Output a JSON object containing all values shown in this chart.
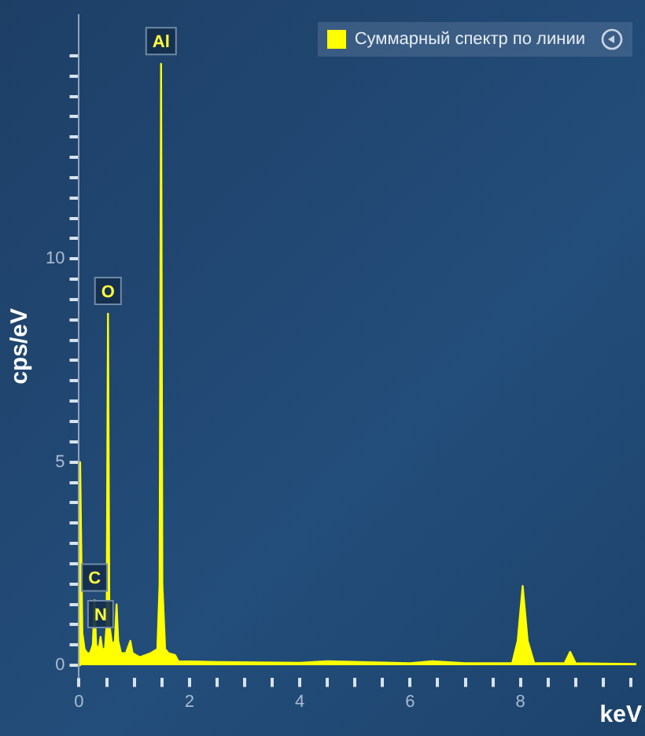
{
  "chart_data": {
    "type": "area",
    "xlabel": "keV",
    "ylabel": "cps/eV",
    "legend": "top right",
    "grid": false,
    "marker": "none",
    "xlim": [
      0,
      10.2
    ],
    "ylim": [
      -0.3,
      16
    ],
    "xticks": [
      0,
      {
        "value": 0.5,
        "label": null
      },
      {
        "value": 1,
        "label": null
      },
      {
        "value": 1.5,
        "label": null
      },
      2,
      {
        "value": 2.5,
        "label": null
      },
      {
        "value": 3,
        "label": null
      },
      {
        "value": 3.5,
        "label": null
      },
      4,
      {
        "value": 4.5,
        "label": null
      },
      {
        "value": 5,
        "label": null
      },
      {
        "value": 5.5,
        "label": null
      },
      6,
      {
        "value": 6.5,
        "label": null
      },
      {
        "value": 7,
        "label": null
      },
      {
        "value": 7.5,
        "label": null
      },
      8,
      {
        "value": 8.5,
        "label": null
      },
      {
        "value": 9,
        "label": null
      },
      {
        "value": 9.5,
        "label": null
      },
      {
        "value": 10,
        "label": null
      }
    ],
    "yticks": [
      0,
      {
        "value": 0.5,
        "label": null
      },
      {
        "value": 1,
        "label": null
      },
      {
        "value": 1.5,
        "label": null
      },
      {
        "value": 2,
        "label": null
      },
      {
        "value": 2.5,
        "label": null
      },
      {
        "value": 3,
        "label": null
      },
      {
        "value": 3.5,
        "label": null
      },
      {
        "value": 4,
        "label": null
      },
      {
        "value": 4.5,
        "label": null
      },
      5,
      {
        "value": 5.5,
        "label": null
      },
      {
        "value": 6,
        "label": null
      },
      {
        "value": 6.5,
        "label": null
      },
      {
        "value": 7,
        "label": null
      },
      {
        "value": 7.5,
        "label": null
      },
      {
        "value": 8,
        "label": null
      },
      {
        "value": 8.5,
        "label": null
      },
      {
        "value": 9,
        "label": null
      },
      {
        "value": 9.5,
        "label": null
      },
      10,
      {
        "value": 10.5,
        "label": null
      },
      {
        "value": 11,
        "label": null
      },
      {
        "value": 11.5,
        "label": null
      },
      {
        "value": 12,
        "label": null
      },
      {
        "value": 12.5,
        "label": null
      },
      {
        "value": 13,
        "label": null
      },
      {
        "value": 13.5,
        "label": null
      },
      {
        "value": 14,
        "label": null
      },
      {
        "value": 14.5,
        "label": null
      },
      {
        "value": 15,
        "label": null
      }
    ],
    "series": [
      {
        "name": "Суммарный спектр по линии",
        "color": "#ffff00",
        "x": [
          0,
          0.02,
          0.06,
          0.1,
          0.15,
          0.2,
          0.25,
          0.28,
          0.31,
          0.36,
          0.39,
          0.42,
          0.47,
          0.5,
          0.525,
          0.55,
          0.6,
          0.65,
          0.68,
          0.71,
          0.76,
          0.85,
          0.93,
          0.97,
          1.1,
          1.3,
          1.42,
          1.46,
          1.487,
          1.51,
          1.56,
          1.62,
          1.74,
          1.8,
          2.5,
          4,
          4.5,
          6,
          6.4,
          7,
          7.85,
          7.95,
          8.04,
          8.13,
          8.25,
          8.8,
          8.9,
          9,
          10.1
        ],
        "values": [
          0,
          5,
          0.8,
          0.4,
          0.3,
          0.3,
          0.5,
          1.6,
          0.5,
          0.4,
          0.7,
          0.4,
          0.4,
          1,
          8.65,
          1,
          0.5,
          0.6,
          1.5,
          0.6,
          0.3,
          0.3,
          0.6,
          0.3,
          0.2,
          0.3,
          0.4,
          2,
          14.8,
          2,
          0.4,
          0.3,
          0.25,
          0.1,
          0.08,
          0.06,
          0.1,
          0.05,
          0.1,
          0.05,
          0.05,
          0.6,
          1.95,
          0.6,
          0.05,
          0.05,
          0.33,
          0.05,
          0.03
        ]
      }
    ],
    "annotations": [
      {
        "text": "Al",
        "x": 1.487,
        "y": 14.8
      },
      {
        "text": "O",
        "x": 0.525,
        "y": 8.65
      },
      {
        "text": "C",
        "x": 0.28,
        "y": 1.6
      },
      {
        "text": "N",
        "x": 0.39,
        "y": 0.7
      }
    ]
  }
}
